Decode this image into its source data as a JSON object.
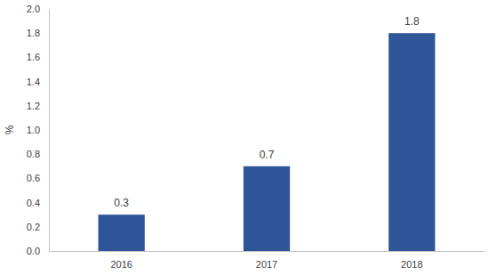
{
  "chart_data": {
    "type": "bar",
    "y_label": "%",
    "categories": [
      "2016",
      "2017",
      "2018"
    ],
    "values": [
      0.3,
      0.7,
      1.8
    ],
    "color": "#2e5597",
    "ylim": [
      0,
      2
    ],
    "yticks": [
      {
        "value": 0,
        "label": "0.0"
      },
      0.2,
      0.4,
      0.6,
      0.8,
      {
        "value": 1,
        "label": "1.0"
      },
      1.2,
      1.4,
      1.6,
      1.8,
      {
        "value": 2,
        "label": "2.0"
      }
    ],
    "grid": false,
    "data_labels": true
  }
}
